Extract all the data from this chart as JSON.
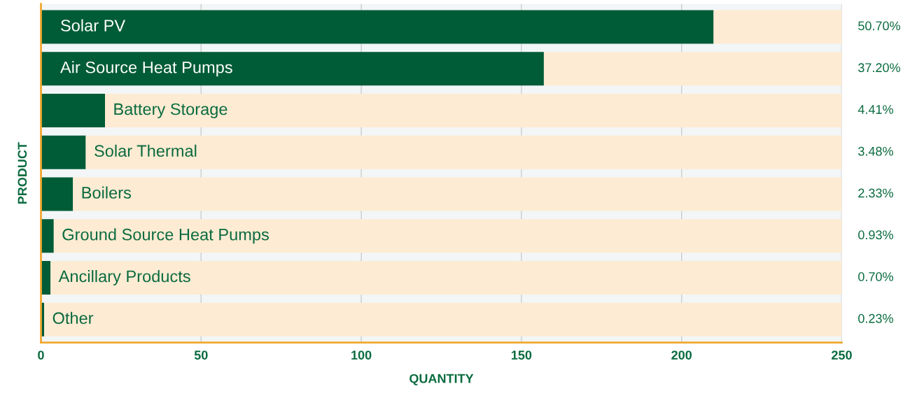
{
  "chart_data": {
    "type": "bar",
    "orientation": "horizontal",
    "stacked": true,
    "xlabel": "QUANTITY",
    "ylabel": "PRODUCT",
    "categories": [
      "Solar PV",
      "Air Source Heat Pumps",
      "Battery Storage",
      "Solar Thermal",
      "Boilers",
      "Ground Source Heat Pumps",
      "Ancillary Products",
      "Other"
    ],
    "series": [
      {
        "color": "#005c36",
        "values": [
          210,
          157,
          20,
          14,
          10,
          4,
          3,
          1
        ]
      },
      {
        "color": "#fdebd3",
        "values": [
          40,
          93,
          230,
          236,
          240,
          246,
          247,
          249
        ]
      }
    ],
    "xlim": [
      0,
      250
    ],
    "xticks": [
      0,
      50,
      100,
      150,
      200,
      250
    ],
    "grid": "x",
    "tick_labels": "x",
    "legend": false,
    "annotations": [
      "50.70%",
      "37.20%",
      "4.41%",
      "3.48%",
      "2.33%",
      "0.93%",
      "0.70%",
      "0.23%"
    ]
  }
}
